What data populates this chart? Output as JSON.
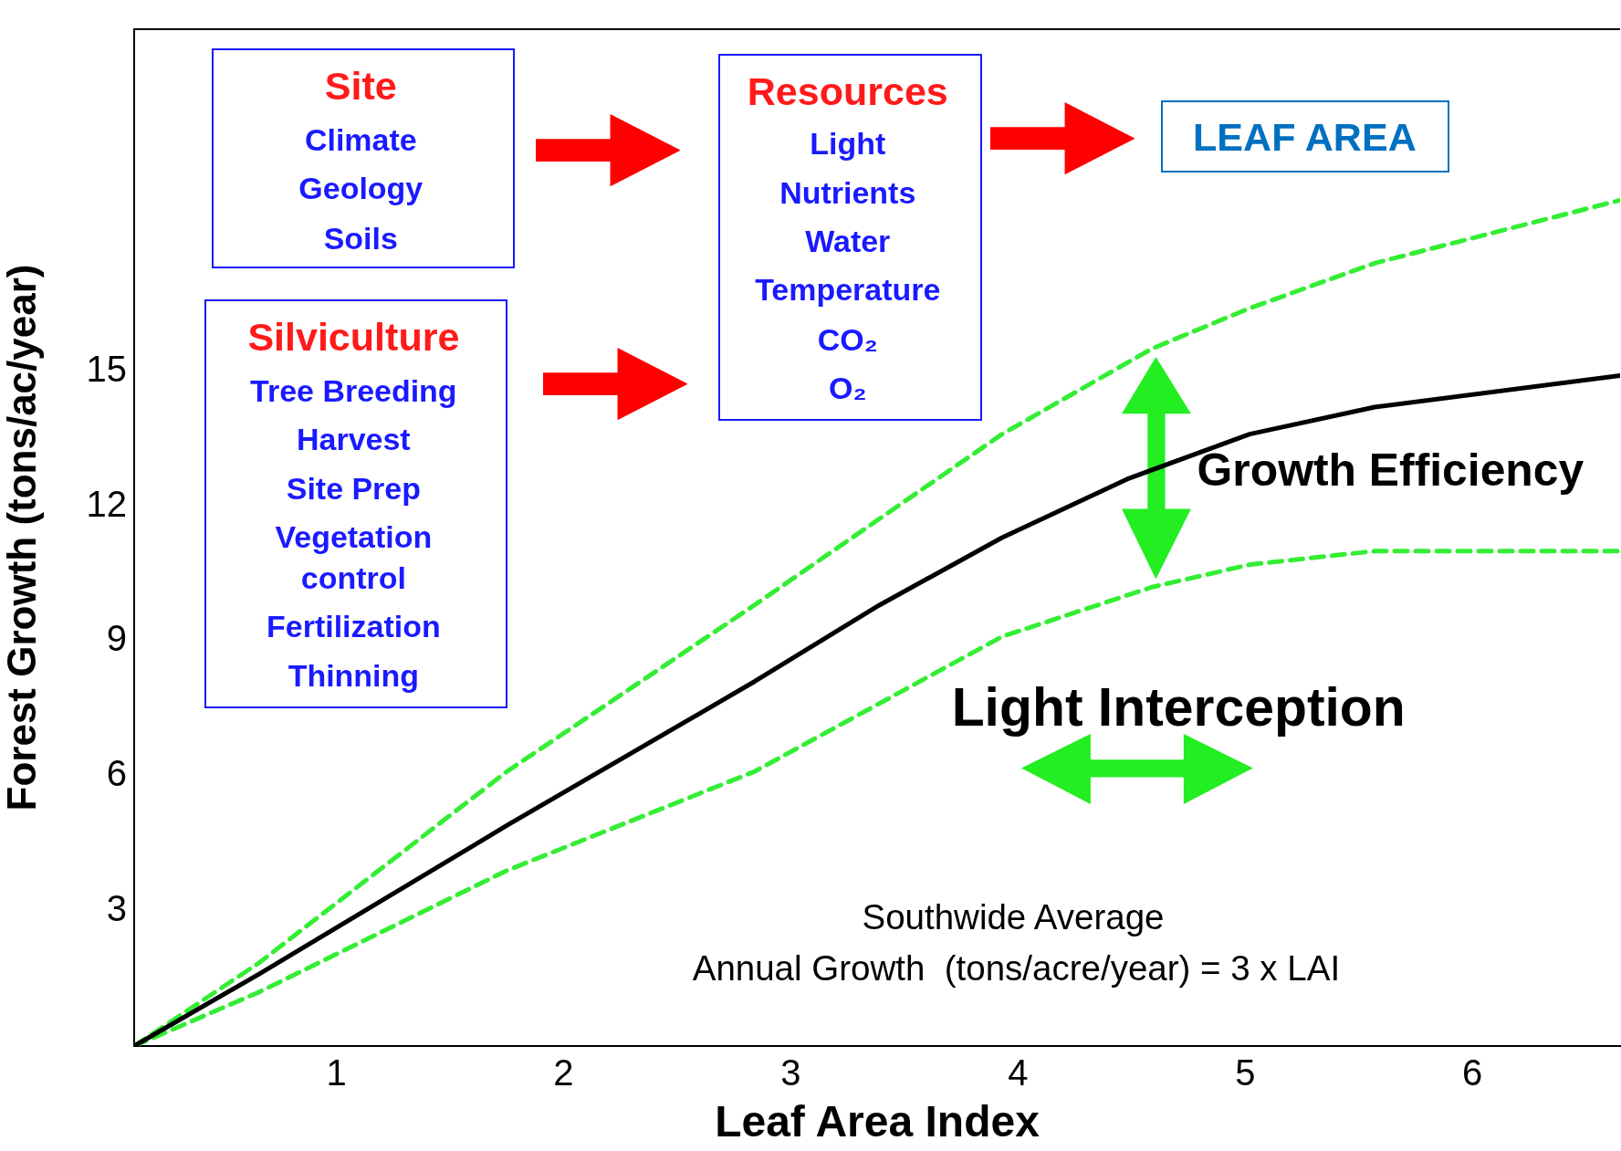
{
  "chart_data": {
    "type": "line",
    "xlabel": "Leaf Area Index",
    "ylabel": "Forest Growth (tons/ac/year)",
    "xlim": [
      0.11,
      6.65
    ],
    "ylim": [
      0,
      22.6
    ],
    "xticks": [
      1,
      2,
      3,
      4,
      5,
      6
    ],
    "yticks": [
      3,
      6,
      9,
      12,
      15
    ],
    "grid": false,
    "legend": false,
    "marker": "none",
    "series": [
      {
        "color": "#000000",
        "line_style": "solid",
        "x": [
          0.11,
          0.66,
          1.75,
          2.84,
          3.39,
          3.93,
          4.48,
          5.02,
          5.57,
          6.65
        ],
        "values": [
          0,
          1.6,
          4.9,
          8.1,
          9.8,
          11.3,
          12.6,
          13.6,
          14.2,
          14.9
        ]
      },
      {
        "color": "#33ee33",
        "line_style": "dashed",
        "x": [
          0.11,
          0.66,
          1.75,
          2.84,
          3.93,
          4.59,
          5.02,
          5.57,
          6.65
        ],
        "values": [
          0,
          1.85,
          6.1,
          9.8,
          13.6,
          15.5,
          16.4,
          17.4,
          18.8
        ]
      },
      {
        "color": "#33ee33",
        "line_style": "dashed",
        "x": [
          0.11,
          0.66,
          1.75,
          2.84,
          3.93,
          4.59,
          5.02,
          5.57,
          6.65
        ],
        "values": [
          0,
          1.2,
          3.9,
          6.1,
          9.1,
          10.2,
          10.7,
          11.0,
          11.0
        ]
      }
    ],
    "annotations": [
      "Site",
      "Climate",
      "Geology",
      "Soils",
      "Silviculture",
      "Tree Breeding",
      "Harvest",
      "Site Prep",
      "Vegetation",
      "control",
      "Fertilization",
      "Thinning",
      "Resources",
      "Light",
      "Nutrients",
      "Water",
      "Temperature",
      "CO₂",
      "O₂",
      "LEAF AREA",
      "Growth Efficiency",
      "Light Interception",
      "Southwide Average",
      "Annual Growth  (tons/acre/year) = 3 x LAI"
    ]
  }
}
